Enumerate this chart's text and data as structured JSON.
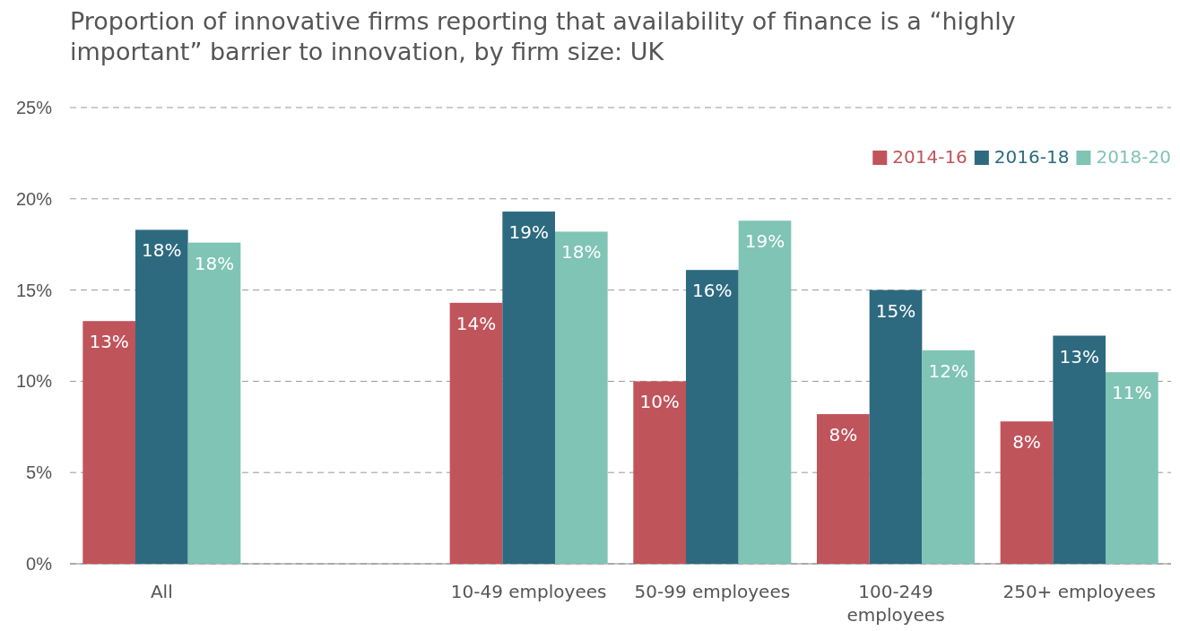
{
  "chart_data": {
    "type": "bar",
    "title": "Proportion of innovative firms reporting that availability of finance is a “highly important” barrier to innovation, by firm size: UK",
    "categories": [
      "All",
      null,
      "10-49 employees",
      "50-99 employees",
      "100-249 employees",
      "250+ employees"
    ],
    "series": [
      {
        "name": "2014-16",
        "color": "#c0545b",
        "values": [
          13.3,
          null,
          14.3,
          10.0,
          8.2,
          7.8
        ],
        "value_labels": [
          "13%",
          null,
          "14%",
          "10%",
          "8%",
          "8%"
        ]
      },
      {
        "name": "2016-18",
        "color": "#2d6a80",
        "values": [
          18.3,
          null,
          19.3,
          16.1,
          15.0,
          12.5
        ],
        "value_labels": [
          "18%",
          null,
          "19%",
          "16%",
          "15%",
          "13%"
        ]
      },
      {
        "name": "2018-20",
        "color": "#7fc4b4",
        "values": [
          17.6,
          null,
          18.2,
          18.8,
          11.7,
          10.5
        ],
        "value_labels": [
          "18%",
          null,
          "18%",
          "19%",
          "12%",
          "11%"
        ]
      }
    ],
    "ylim": [
      0,
      25
    ],
    "yticks": [
      {
        "value": 0,
        "label": "0%"
      },
      {
        "value": 5,
        "label": "5%"
      },
      {
        "value": 10,
        "label": "10%"
      },
      {
        "value": 15,
        "label": "15%"
      },
      {
        "value": 20,
        "label": "20%"
      },
      {
        "value": 25,
        "label": "25%"
      }
    ],
    "grid": "y",
    "legend": "top right"
  }
}
